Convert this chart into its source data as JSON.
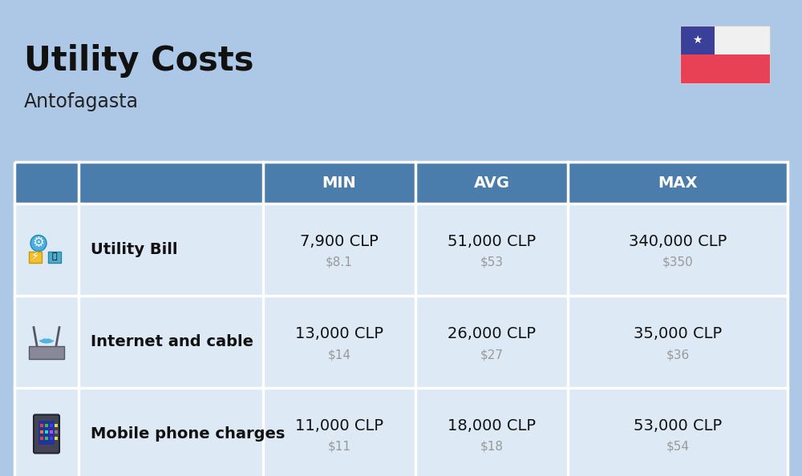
{
  "title": "Utility Costs",
  "subtitle": "Antofagasta",
  "background_color": "#adc8e6",
  "header_bg_color": "#4a7cac",
  "header_text_color": "#ffffff",
  "row_bg_color": "#dde9f5",
  "cell_border_color": "#ffffff",
  "col_headers": [
    "MIN",
    "AVG",
    "MAX"
  ],
  "rows": [
    {
      "label": "Utility Bill",
      "min_clp": "7,900 CLP",
      "min_usd": "$8.1",
      "avg_clp": "51,000 CLP",
      "avg_usd": "$53",
      "max_clp": "340,000 CLP",
      "max_usd": "$350"
    },
    {
      "label": "Internet and cable",
      "min_clp": "13,000 CLP",
      "min_usd": "$14",
      "avg_clp": "26,000 CLP",
      "avg_usd": "$27",
      "max_clp": "35,000 CLP",
      "max_usd": "$36"
    },
    {
      "label": "Mobile phone charges",
      "min_clp": "11,000 CLP",
      "min_usd": "$11",
      "avg_clp": "18,000 CLP",
      "avg_usd": "$18",
      "max_clp": "53,000 CLP",
      "max_usd": "$54"
    }
  ],
  "title_fontsize": 30,
  "subtitle_fontsize": 17,
  "header_fontsize": 14,
  "label_fontsize": 14,
  "value_fontsize": 14,
  "usd_fontsize": 11,
  "usd_color": "#999999",
  "flag_white": "#f0f0f0",
  "flag_red": "#e84055",
  "flag_blue": "#3a3f99",
  "flag_star": "#ffffff",
  "border_color": "#ffffff",
  "border_lw": 2.5
}
